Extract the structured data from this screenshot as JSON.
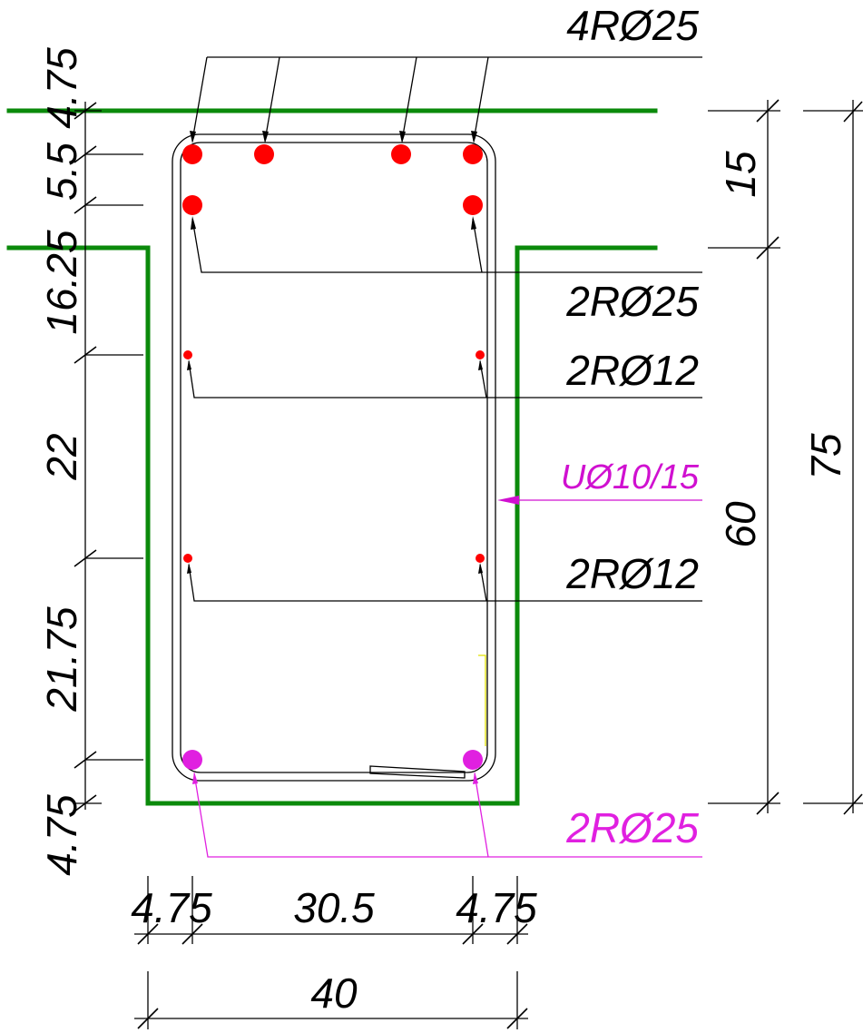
{
  "colors": {
    "slab_outline": "#0b8a0b",
    "top_bars": "#ff0000",
    "bottom_bars": "#e020e0",
    "stirrup_label": "#d010d0",
    "bottom_label": "#e020e0",
    "dimension_lines": "#000000",
    "marker": "#e0e000"
  },
  "labels": {
    "top_bars": "4RØ25",
    "second_row": "2RØ25",
    "side_bars_upper": "2RØ12",
    "stirrups": "UØ10/15",
    "side_bars_lower": "2RØ12",
    "bottom_bars": "2RØ25"
  },
  "dimensions": {
    "left": [
      "4.75",
      "5.5",
      "16.25",
      "22",
      "21.75",
      "4.75"
    ],
    "bottom": [
      "4.75",
      "30.5",
      "4.75"
    ],
    "bottom_total": "40",
    "right_flange": "15",
    "right_web": "60",
    "right_total": "75"
  }
}
